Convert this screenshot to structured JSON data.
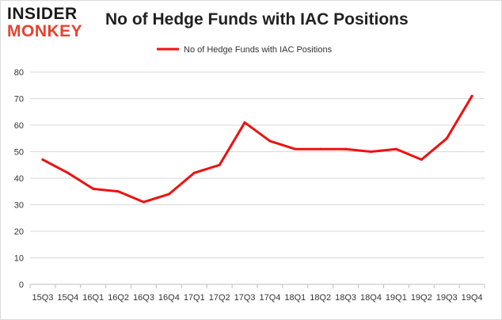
{
  "logo": {
    "line1": "INSIDER",
    "line2": "MONKEY"
  },
  "chart_data": {
    "type": "line",
    "title": "No of Hedge Funds with IAC Positions",
    "xlabel": "",
    "ylabel": "",
    "categories": [
      "15Q3",
      "15Q4",
      "16Q1",
      "16Q2",
      "16Q3",
      "16Q4",
      "17Q1",
      "17Q2",
      "17Q3",
      "17Q4",
      "18Q1",
      "18Q2",
      "18Q3",
      "18Q4",
      "19Q1",
      "19Q2",
      "19Q3",
      "19Q4"
    ],
    "series": [
      {
        "name": "No of Hedge Funds with IAC Positions",
        "values": [
          47,
          42,
          36,
          35,
          31,
          34,
          42,
          45,
          61,
          54,
          51,
          51,
          51,
          50,
          51,
          47,
          55,
          71
        ],
        "color": "#ee1111"
      }
    ],
    "ylim": [
      0,
      80
    ],
    "yticks": [
      0,
      10,
      20,
      30,
      40,
      50,
      60,
      70,
      80
    ],
    "grid": true,
    "legend": "top-center"
  }
}
